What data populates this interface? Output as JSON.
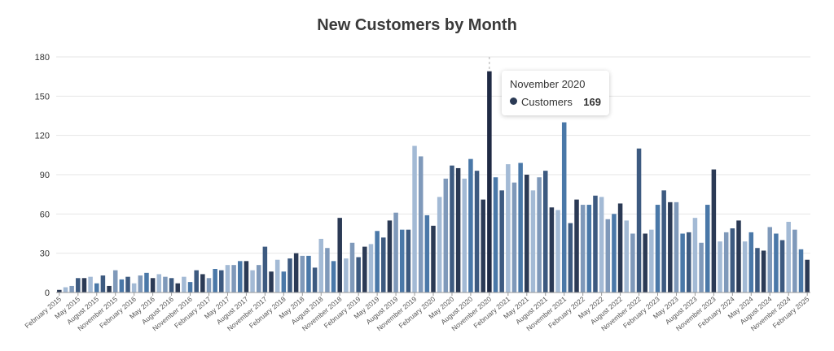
{
  "chart_data": {
    "type": "bar",
    "title": "New Customers by Month",
    "xlabel": "",
    "ylabel": "",
    "ylim": [
      0,
      180
    ],
    "yticks": [
      0,
      30,
      60,
      90,
      120,
      150,
      180
    ],
    "grid": true,
    "start": "2015-02",
    "x_tick_labels": [
      "February 2015",
      "May 2015",
      "August 2015",
      "November 2015",
      "February 2016",
      "May 2016",
      "August 2016",
      "November 2016",
      "February 2017",
      "May 2017",
      "August 2017",
      "November 2017",
      "February 2018",
      "May 2018",
      "August 2018",
      "November 2018",
      "February 2019",
      "May 2019",
      "August 2019",
      "November 2019",
      "February 2020",
      "May 2020",
      "August 2020",
      "November 2020",
      "February 2021",
      "May 2021",
      "August 2021",
      "November 2021",
      "February 2022",
      "May 2022",
      "August 2022",
      "November 2022",
      "February 2023",
      "May 2023",
      "August 2023",
      "November 2023",
      "February 2024",
      "May 2024",
      "August 2024",
      "November 2024",
      "February 2025"
    ],
    "series": [
      {
        "name": "Customers",
        "values": [
          2,
          4,
          5,
          11,
          11,
          12,
          7,
          13,
          5,
          17,
          10,
          12,
          7,
          13,
          15,
          11,
          14,
          12,
          11,
          7,
          12,
          8,
          17,
          14,
          11,
          18,
          17,
          21,
          21,
          24,
          24,
          17,
          21,
          35,
          16,
          25,
          16,
          26,
          30,
          28,
          28,
          19,
          41,
          34,
          24,
          57,
          26,
          38,
          27,
          35,
          37,
          47,
          42,
          55,
          61,
          48,
          48,
          112,
          104,
          59,
          51,
          73,
          87,
          97,
          95,
          87,
          102,
          93,
          71,
          169,
          88,
          78,
          98,
          84,
          99,
          90,
          78,
          88,
          93,
          65,
          63,
          130,
          53,
          71,
          67,
          67,
          74,
          73,
          56,
          60,
          68,
          55,
          45,
          110,
          45,
          48,
          67,
          78,
          69,
          69,
          45,
          46,
          57,
          38,
          67,
          94,
          39,
          46,
          49,
          55,
          39,
          46,
          34,
          32,
          50,
          45,
          40,
          54,
          48,
          33,
          25
        ]
      }
    ],
    "colors": [
      "#2b3a55",
      "#3d5a80",
      "#4a78a8",
      "#7f99ba",
      "#a3bad5"
    ],
    "highlight": {
      "label": "November 2020",
      "series": "Customers",
      "value": "169"
    }
  }
}
